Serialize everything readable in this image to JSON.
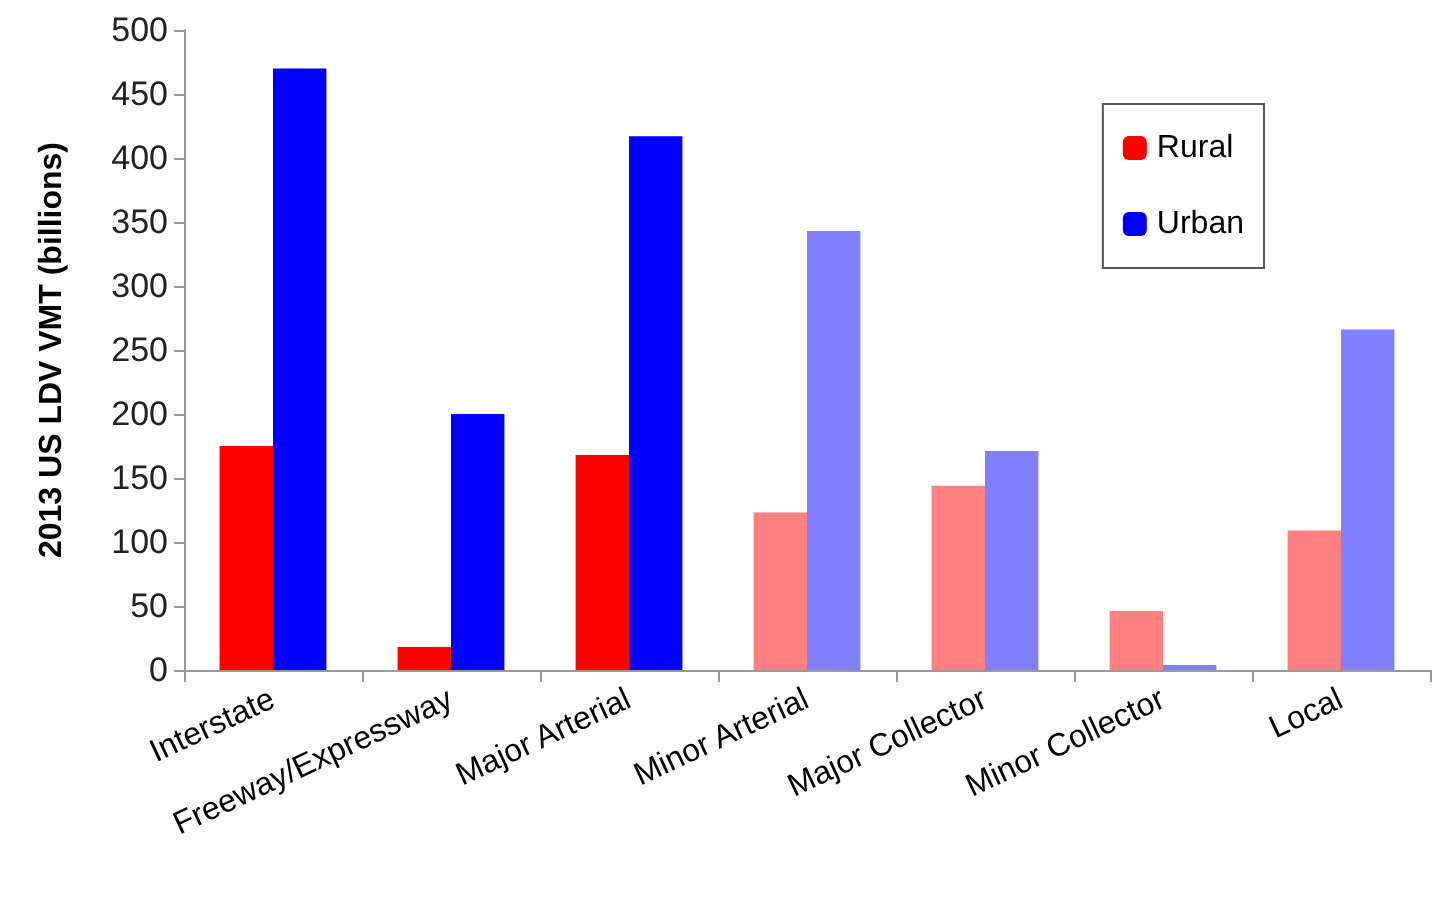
{
  "chart_data": {
    "type": "bar",
    "ylabel": "2013 US LDV VMT (billions)",
    "categories": [
      "Interstate",
      "Freeway/Expressway",
      "Major Arterial",
      "Minor Arterial",
      "Major Collector",
      "Minor Collector",
      "Local"
    ],
    "series": [
      {
        "name": "Rural",
        "color": "#ff0000",
        "colors": [
          "#ff0000",
          "#ff0000",
          "#ff0000",
          "#ff8080",
          "#ff8080",
          "#ff8080",
          "#ff8080"
        ],
        "values": [
          175,
          18,
          168,
          123,
          144,
          46,
          109
        ]
      },
      {
        "name": "Urban",
        "color": "#0000ff",
        "colors": [
          "#0000ff",
          "#0000ff",
          "#0000ff",
          "#8080ff",
          "#8080ff",
          "#8080ff",
          "#8080ff"
        ],
        "values": [
          470,
          200,
          417,
          343,
          171,
          4,
          266
        ]
      }
    ],
    "ylim": [
      0,
      500
    ],
    "yticks": [
      0,
      50,
      100,
      150,
      200,
      250,
      300,
      350,
      400,
      450,
      500
    ],
    "grid": false,
    "legend": "top right"
  }
}
